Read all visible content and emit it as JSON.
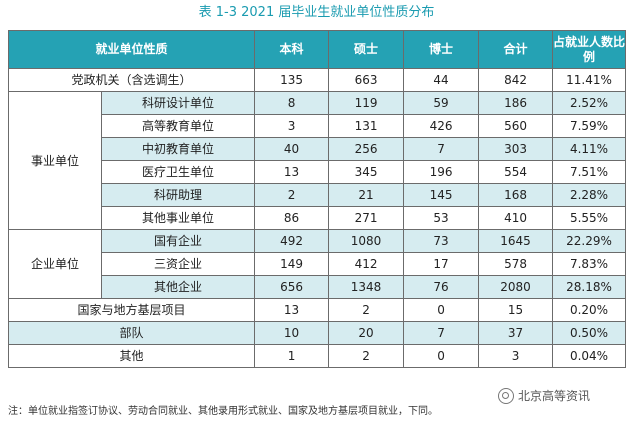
{
  "caption": "表 1-3   2021 届毕业生就业单位性质分布",
  "columns": [
    "就业单位性质",
    "本科",
    "硕士",
    "博士",
    "合计",
    "占就业人数比例"
  ],
  "rows": [
    {
      "group": "党政机关（含选调生）",
      "sub": null,
      "values": [
        "135",
        "663",
        "44",
        "842",
        "11.41%"
      ]
    },
    {
      "group": "事业单位",
      "sub": "科研设计单位",
      "values": [
        "8",
        "119",
        "59",
        "186",
        "2.52%"
      ]
    },
    {
      "group": "",
      "sub": "高等教育单位",
      "values": [
        "3",
        "131",
        "426",
        "560",
        "7.59%"
      ]
    },
    {
      "group": "",
      "sub": "中初教育单位",
      "values": [
        "40",
        "256",
        "7",
        "303",
        "4.11%"
      ]
    },
    {
      "group": "",
      "sub": "医疗卫生单位",
      "values": [
        "13",
        "345",
        "196",
        "554",
        "7.51%"
      ]
    },
    {
      "group": "",
      "sub": "科研助理",
      "values": [
        "2",
        "21",
        "145",
        "168",
        "2.28%"
      ]
    },
    {
      "group": "",
      "sub": "其他事业单位",
      "values": [
        "86",
        "271",
        "53",
        "410",
        "5.55%"
      ]
    },
    {
      "group": "企业单位",
      "sub": "国有企业",
      "values": [
        "492",
        "1080",
        "73",
        "1645",
        "22.29%"
      ]
    },
    {
      "group": "",
      "sub": "三资企业",
      "values": [
        "149",
        "412",
        "17",
        "578",
        "7.83%"
      ]
    },
    {
      "group": "",
      "sub": "其他企业",
      "values": [
        "656",
        "1348",
        "76",
        "2080",
        "28.18%"
      ]
    },
    {
      "group": "国家与地方基层项目",
      "sub": null,
      "values": [
        "13",
        "2",
        "0",
        "15",
        "0.20%"
      ]
    },
    {
      "group": "部队",
      "sub": null,
      "values": [
        "10",
        "20",
        "7",
        "37",
        "0.50%"
      ]
    },
    {
      "group": "其他",
      "sub": null,
      "values": [
        "1",
        "2",
        "0",
        "3",
        "0.04%"
      ]
    }
  ],
  "note": "注：单位就业指签订协议、劳动合同就业、其他录用形式就业、国家及地方基层项目就业，下同。",
  "watermark": "北京高等资讯",
  "colors": {
    "header": "#25a2b4",
    "shade": "#d6ecf0",
    "caption": "#1a9bb0"
  }
}
